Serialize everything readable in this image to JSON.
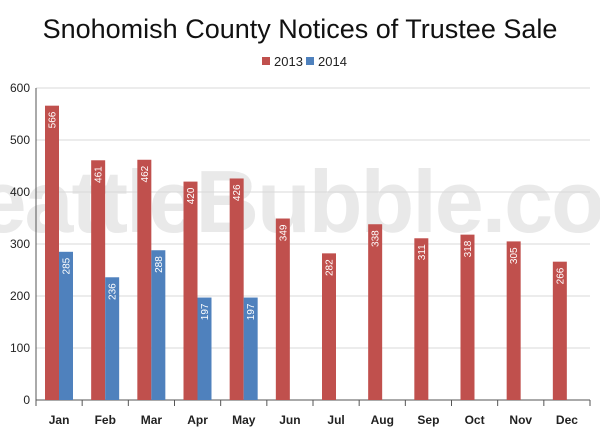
{
  "watermark": "SeattleBubble.com",
  "chart_data": {
    "type": "bar",
    "title": "Snohomish County Notices of Trustee Sale",
    "xlabel": "",
    "ylabel": "",
    "ylim": [
      0,
      600
    ],
    "yticks": [
      0,
      100,
      200,
      300,
      400,
      500,
      600
    ],
    "grid": true,
    "legend_position": "top-center",
    "categories": [
      "Jan",
      "Feb",
      "Mar",
      "Apr",
      "May",
      "Jun",
      "Jul",
      "Aug",
      "Sep",
      "Oct",
      "Nov",
      "Dec"
    ],
    "series": [
      {
        "name": "2013",
        "color": "#c0504d",
        "values": [
          566,
          461,
          462,
          420,
          426,
          349,
          282,
          338,
          311,
          318,
          305,
          266
        ]
      },
      {
        "name": "2014",
        "color": "#4f81bd",
        "values": [
          285,
          236,
          288,
          197,
          197,
          null,
          null,
          null,
          null,
          null,
          null,
          null
        ]
      }
    ]
  }
}
